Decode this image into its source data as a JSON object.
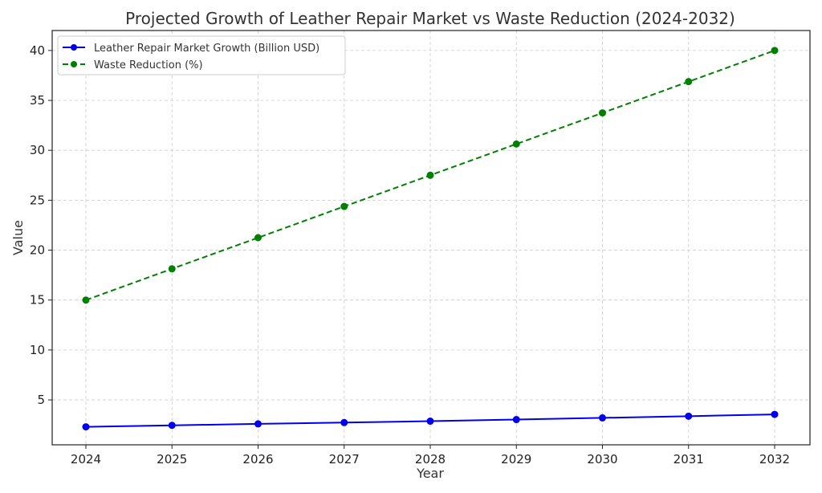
{
  "chart_data": {
    "type": "line",
    "title": "Projected Growth of Leather Repair Market vs Waste Reduction (2024-2032)",
    "xlabel": "Year",
    "ylabel": "Value",
    "x": [
      "2024",
      "2025",
      "2026",
      "2027",
      "2028",
      "2029",
      "2030",
      "2031",
      "2032"
    ],
    "yticks": [
      "5",
      "10",
      "15",
      "20",
      "25",
      "30",
      "35",
      "40"
    ],
    "ylim": [
      0.5,
      42
    ],
    "grid": true,
    "legend_position": "top-left",
    "series": [
      {
        "name": "Leather Repair Market Growth (Billion USD)",
        "color": "#0000ee",
        "style": "solid",
        "values": [
          2.3,
          2.45,
          2.6,
          2.73,
          2.87,
          3.03,
          3.2,
          3.37,
          3.55
        ]
      },
      {
        "name": "Waste Reduction (%)",
        "color": "#008000",
        "style": "dashed",
        "values": [
          15.0,
          18.13,
          21.25,
          24.38,
          27.5,
          30.63,
          33.75,
          36.88,
          40.0
        ]
      }
    ]
  }
}
